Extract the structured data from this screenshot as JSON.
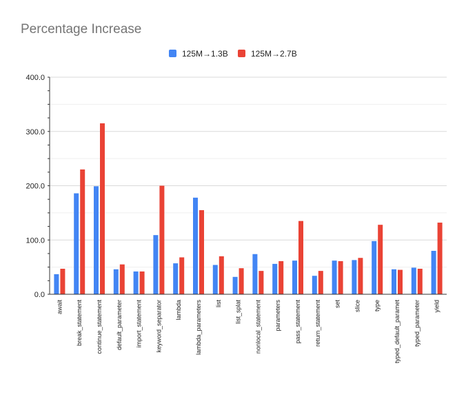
{
  "chart_data": {
    "type": "bar",
    "title": "Percentage Increase",
    "xlabel": "",
    "ylabel": "",
    "ylim": [
      0,
      400
    ],
    "yticks": [
      "0.0",
      "100.0",
      "200.0",
      "300.0",
      "400.0"
    ],
    "grid": true,
    "legend_position": "top",
    "categories": [
      "await",
      "break_statement",
      "continue_statement",
      "default_parameter",
      "import_statement",
      "keyword_separator",
      "lambda",
      "lambda_parameters",
      "list",
      "list_splat",
      "nonlocal_statement",
      "parameters",
      "pass_statement",
      "return_statement",
      "set",
      "slice",
      "type",
      "typed_default_paramet",
      "typed_parameter",
      "yield"
    ],
    "series": [
      {
        "name": "125M→1.3B",
        "color": "#4285f4",
        "values": [
          37,
          186,
          199,
          46,
          42,
          109,
          57,
          178,
          54,
          32,
          74,
          56,
          62,
          34,
          62,
          63,
          98,
          46,
          49,
          80
        ]
      },
      {
        "name": "125M→2.7B",
        "color": "#ea4335",
        "values": [
          47,
          230,
          315,
          55,
          42,
          200,
          68,
          155,
          70,
          48,
          43,
          61,
          135,
          43,
          61,
          67,
          128,
          45,
          47,
          132
        ]
      }
    ]
  }
}
